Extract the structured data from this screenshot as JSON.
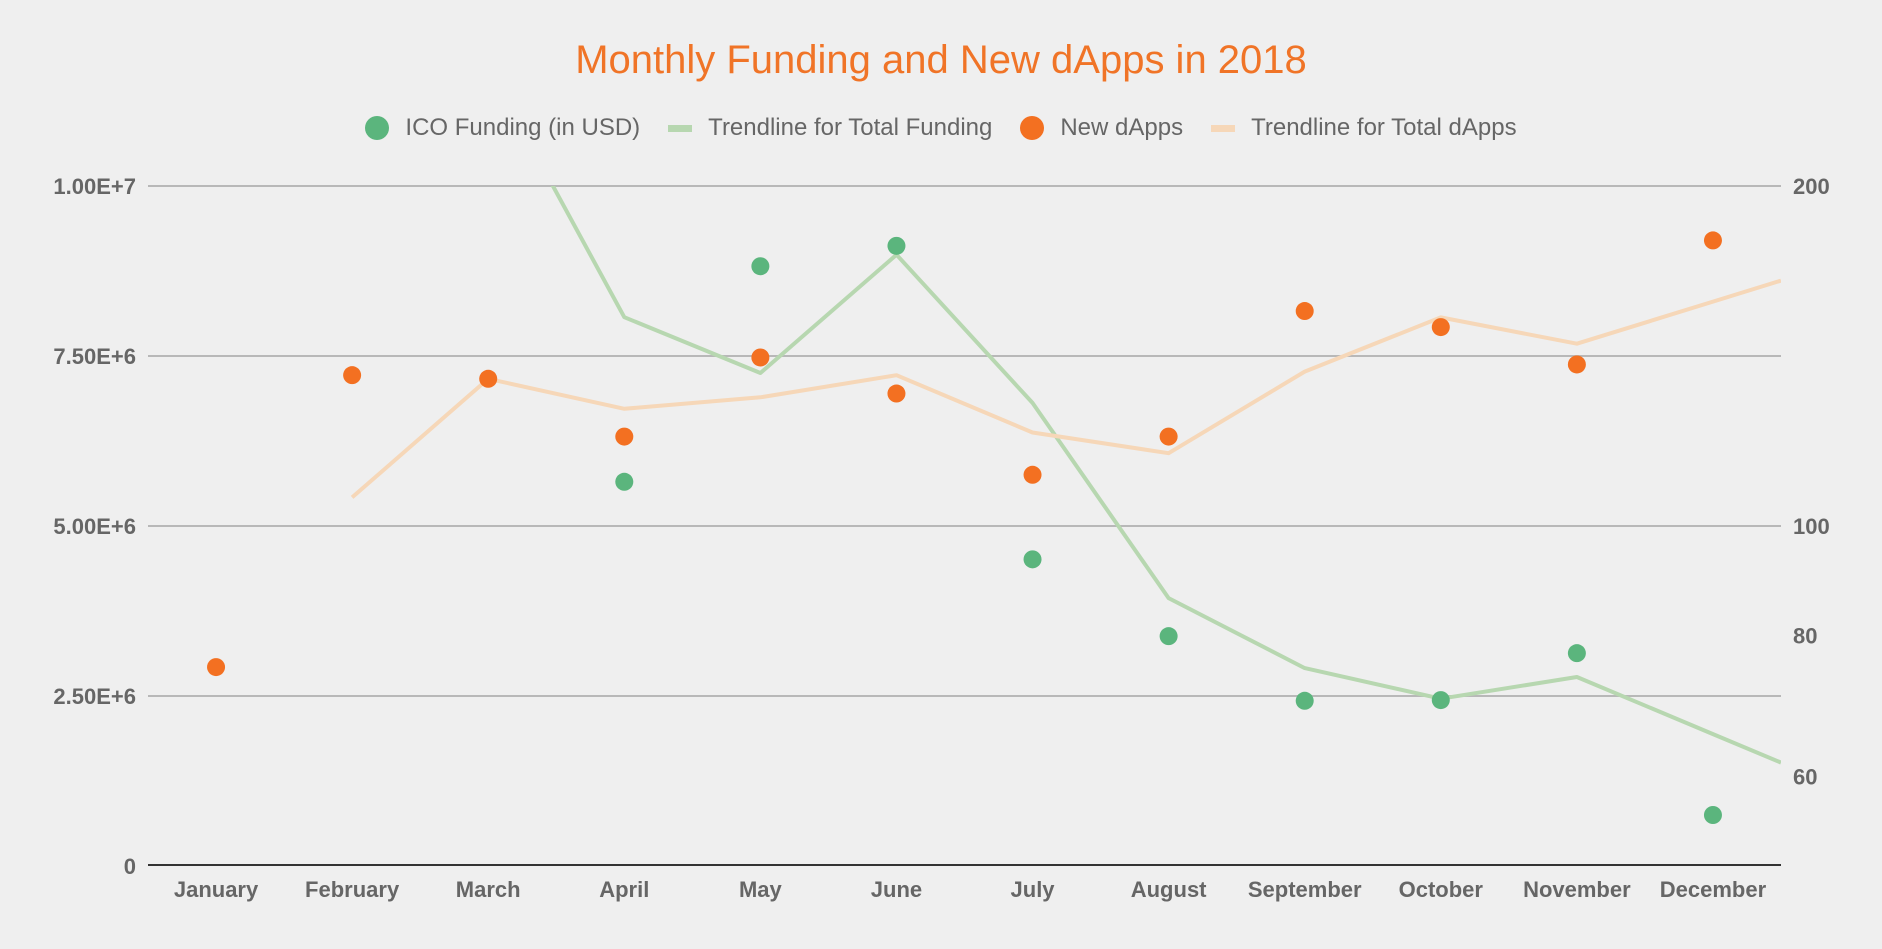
{
  "chart_data": {
    "type": "scatter",
    "title": "Monthly Funding and New dApps in 2018",
    "xlabel": "",
    "ylabel_left": "",
    "ylabel_right": "",
    "categories": [
      "January",
      "February",
      "March",
      "April",
      "May",
      "June",
      "July",
      "August",
      "September",
      "October",
      "November",
      "December"
    ],
    "left_axis": {
      "scale": "linear",
      "range": [
        0,
        10000000
      ],
      "ticks": [
        0,
        2500000,
        5000000,
        7500000,
        10000000
      ],
      "tick_labels": [
        "0",
        "2.50E+6",
        "5.00E+6",
        "7.50E+6",
        "1.00E+7"
      ]
    },
    "right_axis": {
      "scale": "log",
      "range": [
        50,
        200
      ],
      "ticks": [
        60,
        80,
        100,
        200
      ],
      "tick_labels": [
        "60",
        "80",
        "100",
        "200"
      ]
    },
    "grid": true,
    "legend_position": "top",
    "series": [
      {
        "name": "ICO Funding (in USD)",
        "kind": "points",
        "axis": "left",
        "color": "#5bb57d",
        "values": [
          null,
          null,
          null,
          5650000,
          8820000,
          9120000,
          4510000,
          3380000,
          2430000,
          2440000,
          3130000,
          750000
        ]
      },
      {
        "name": "Trendline for Total Funding",
        "kind": "line",
        "axis": "left",
        "color": "#b7d7b0",
        "values": [
          null,
          null,
          11750000,
          8070000,
          7250000,
          8990000,
          6810000,
          3940000,
          2910000,
          2460000,
          2780000,
          1940000
        ]
      },
      {
        "name": "New dApps",
        "kind": "points",
        "axis": "right",
        "color": "#f37021",
        "values": [
          75,
          136,
          135,
          120,
          141,
          131,
          111,
          120,
          155,
          150,
          139,
          179
        ]
      },
      {
        "name": "Trendline for Total dApps",
        "kind": "line",
        "axis": "right",
        "color": "#f6d7b8",
        "values": [
          null,
          106,
          135,
          127,
          130,
          136,
          121,
          116,
          137,
          153,
          145,
          158
        ]
      }
    ]
  },
  "colors": {
    "title": "#f07427",
    "background": "#efefef",
    "gridline": "#b8b8b8",
    "baseline": "#333333",
    "axis_text": "#666666"
  }
}
